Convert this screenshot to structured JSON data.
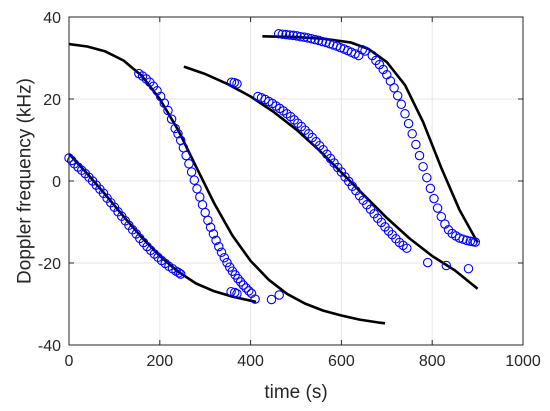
{
  "chart_data": {
    "type": "scatter",
    "title": "",
    "xlabel": "time (s)",
    "ylabel": "Doppler frequency (kHz)",
    "xlim": [
      0,
      1000
    ],
    "ylim": [
      -40,
      40
    ],
    "xticks": [
      0,
      200,
      400,
      600,
      800,
      1000
    ],
    "yticks": [
      -40,
      -20,
      0,
      20,
      40
    ],
    "grid": true,
    "box": true,
    "colors": {
      "measured": "#0000ff",
      "model": "#000000",
      "grid": "#e6e6e6",
      "axis": "#262626"
    },
    "series": [
      {
        "kind": "measured-points",
        "marker": "circle-open",
        "points": [
          [
            0,
            5.6
          ],
          [
            6,
            5.0
          ],
          [
            12,
            4.2
          ],
          [
            20,
            3.4
          ],
          [
            28,
            2.6
          ],
          [
            36,
            1.8
          ],
          [
            44,
            0.9
          ],
          [
            52,
            0.0
          ],
          [
            60,
            -1.0
          ],
          [
            68,
            -2.0
          ],
          [
            76,
            -3.0
          ],
          [
            84,
            -4.2
          ],
          [
            92,
            -5.3
          ],
          [
            100,
            -6.4
          ],
          [
            108,
            -7.5
          ],
          [
            116,
            -8.6
          ],
          [
            124,
            -9.7
          ],
          [
            132,
            -10.8
          ],
          [
            140,
            -11.9
          ],
          [
            148,
            -12.9
          ],
          [
            156,
            -14.0
          ],
          [
            164,
            -15.0
          ],
          [
            172,
            -16.0
          ],
          [
            180,
            -16.9
          ],
          [
            188,
            -17.8
          ],
          [
            196,
            -18.6
          ],
          [
            204,
            -19.4
          ],
          [
            212,
            -20.1
          ],
          [
            220,
            -20.8
          ],
          [
            228,
            -21.4
          ],
          [
            236,
            -22.0
          ],
          [
            242,
            -22.4
          ],
          [
            246,
            -22.7
          ],
          [
            154,
            26.2
          ],
          [
            162,
            25.6
          ],
          [
            170,
            24.9
          ],
          [
            178,
            24.1
          ],
          [
            186,
            23.1
          ],
          [
            194,
            22.0
          ],
          [
            202,
            20.6
          ],
          [
            210,
            19.0
          ],
          [
            218,
            17.2
          ],
          [
            226,
            15.1
          ],
          [
            234,
            12.8
          ],
          [
            240,
            11.5
          ],
          [
            246,
            9.9
          ],
          [
            252,
            8.1
          ],
          [
            258,
            6.2
          ],
          [
            264,
            4.2
          ],
          [
            270,
            2.2
          ],
          [
            276,
            0.2
          ],
          [
            282,
            -1.9
          ],
          [
            288,
            -3.9
          ],
          [
            294,
            -5.8
          ],
          [
            300,
            -7.7
          ],
          [
            306,
            -9.6
          ],
          [
            312,
            -11.3
          ],
          [
            318,
            -12.9
          ],
          [
            324,
            -14.5
          ],
          [
            330,
            -16.0
          ],
          [
            336,
            -17.4
          ],
          [
            342,
            -18.7
          ],
          [
            348,
            -19.9
          ],
          [
            354,
            -21.0
          ],
          [
            360,
            -22.0
          ],
          [
            366,
            -22.9
          ],
          [
            372,
            -23.8
          ],
          [
            378,
            -24.6
          ],
          [
            384,
            -25.4
          ],
          [
            390,
            -26.1
          ],
          [
            396,
            -26.8
          ],
          [
            402,
            -27.4
          ],
          [
            357,
            -27.0
          ],
          [
            365,
            -27.2
          ],
          [
            370,
            -27.5
          ],
          [
            358,
            24.1
          ],
          [
            364,
            24.0
          ],
          [
            370,
            23.7
          ],
          [
            410,
            -28.8
          ],
          [
            446,
            -28.9
          ],
          [
            463,
            -27.8
          ],
          [
            416,
            20.6
          ],
          [
            424,
            20.3
          ],
          [
            432,
            19.9
          ],
          [
            440,
            19.4
          ],
          [
            448,
            18.9
          ],
          [
            456,
            18.3
          ],
          [
            464,
            17.7
          ],
          [
            472,
            17.1
          ],
          [
            480,
            16.4
          ],
          [
            488,
            15.7
          ],
          [
            496,
            14.9
          ],
          [
            504,
            14.1
          ],
          [
            512,
            13.3
          ],
          [
            520,
            12.4
          ],
          [
            528,
            11.5
          ],
          [
            536,
            10.6
          ],
          [
            544,
            9.6
          ],
          [
            552,
            8.6
          ],
          [
            560,
            7.6
          ],
          [
            568,
            6.5
          ],
          [
            576,
            5.5
          ],
          [
            584,
            4.4
          ],
          [
            592,
            3.3
          ],
          [
            600,
            2.2
          ],
          [
            608,
            1.0
          ],
          [
            616,
            -0.1
          ],
          [
            624,
            -1.3
          ],
          [
            632,
            -2.4
          ],
          [
            640,
            -3.6
          ],
          [
            648,
            -4.7
          ],
          [
            656,
            -5.8
          ],
          [
            664,
            -6.9
          ],
          [
            672,
            -8.0
          ],
          [
            680,
            -9.1
          ],
          [
            688,
            -10.1
          ],
          [
            696,
            -11.2
          ],
          [
            704,
            -12.2
          ],
          [
            712,
            -13.1
          ],
          [
            720,
            -14.1
          ],
          [
            728,
            -15.0
          ],
          [
            736,
            -15.7
          ],
          [
            744,
            -16.4
          ],
          [
            790,
            -19.9
          ],
          [
            831,
            -20.6
          ],
          [
            880,
            -21.4
          ],
          [
            462,
            35.9
          ],
          [
            470,
            35.8
          ],
          [
            478,
            35.7
          ],
          [
            486,
            35.6
          ],
          [
            494,
            35.5
          ],
          [
            502,
            35.4
          ],
          [
            510,
            35.2
          ],
          [
            518,
            35.1
          ],
          [
            526,
            34.9
          ],
          [
            534,
            34.7
          ],
          [
            542,
            34.5
          ],
          [
            550,
            34.3
          ],
          [
            558,
            34.0
          ],
          [
            566,
            33.8
          ],
          [
            574,
            33.5
          ],
          [
            582,
            33.2
          ],
          [
            590,
            32.9
          ],
          [
            598,
            32.5
          ],
          [
            606,
            32.2
          ],
          [
            614,
            31.8
          ],
          [
            622,
            31.4
          ],
          [
            630,
            31.0
          ],
          [
            638,
            30.6
          ],
          [
            646,
            32.0
          ],
          [
            652,
            31.7
          ],
          [
            668,
            30.6
          ],
          [
            676,
            29.4
          ],
          [
            684,
            28.4
          ],
          [
            692,
            27.2
          ],
          [
            700,
            25.9
          ],
          [
            708,
            24.4
          ],
          [
            716,
            22.7
          ],
          [
            724,
            20.8
          ],
          [
            732,
            18.7
          ],
          [
            740,
            16.4
          ],
          [
            748,
            14.0
          ],
          [
            756,
            11.5
          ],
          [
            764,
            8.9
          ],
          [
            772,
            6.2
          ],
          [
            780,
            3.5
          ],
          [
            788,
            0.8
          ],
          [
            796,
            -1.8
          ],
          [
            804,
            -4.3
          ],
          [
            812,
            -6.6
          ],
          [
            820,
            -8.7
          ],
          [
            828,
            -10.5
          ],
          [
            836,
            -11.9
          ],
          [
            844,
            -12.8
          ],
          [
            852,
            -13.4
          ],
          [
            860,
            -13.9
          ],
          [
            868,
            -14.2
          ],
          [
            876,
            -14.5
          ],
          [
            884,
            -14.7
          ],
          [
            890,
            -14.8
          ],
          [
            895,
            -14.9
          ]
        ]
      },
      {
        "kind": "model-curve",
        "points": [
          [
            0,
            33.4
          ],
          [
            40,
            32.8
          ],
          [
            80,
            31.6
          ],
          [
            120,
            29.4
          ],
          [
            160,
            25.7
          ],
          [
            200,
            20.0
          ],
          [
            240,
            12.5
          ],
          [
            280,
            3.5
          ],
          [
            320,
            -5.5
          ],
          [
            360,
            -13.3
          ],
          [
            400,
            -19.5
          ],
          [
            440,
            -24.1
          ],
          [
            480,
            -27.5
          ],
          [
            520,
            -29.9
          ],
          [
            560,
            -31.6
          ],
          [
            600,
            -32.8
          ],
          [
            640,
            -33.8
          ],
          [
            680,
            -34.5
          ],
          [
            696,
            -34.7
          ]
        ]
      },
      {
        "kind": "model-curve",
        "points": [
          [
            0,
            6.6
          ],
          [
            40,
            1.8
          ],
          [
            80,
            -3.3
          ],
          [
            120,
            -8.6
          ],
          [
            160,
            -13.7
          ],
          [
            200,
            -18.3
          ],
          [
            240,
            -22.1
          ],
          [
            280,
            -25.0
          ],
          [
            320,
            -26.9
          ],
          [
            360,
            -28.2
          ],
          [
            400,
            -29.2
          ],
          [
            412,
            -29.5
          ]
        ]
      },
      {
        "kind": "model-curve",
        "points": [
          [
            253,
            27.9
          ],
          [
            300,
            26.1
          ],
          [
            350,
            23.6
          ],
          [
            400,
            20.6
          ],
          [
            450,
            16.9
          ],
          [
            500,
            12.6
          ],
          [
            550,
            7.6
          ],
          [
            600,
            2.1
          ],
          [
            650,
            -3.5
          ],
          [
            700,
            -9.0
          ],
          [
            750,
            -14.0
          ],
          [
            800,
            -18.3
          ],
          [
            850,
            -21.8
          ],
          [
            900,
            -26.3
          ]
        ]
      },
      {
        "kind": "model-curve",
        "points": [
          [
            426,
            35.3
          ],
          [
            500,
            35.1
          ],
          [
            560,
            34.7
          ],
          [
            620,
            33.8
          ],
          [
            660,
            32.2
          ],
          [
            700,
            29.0
          ],
          [
            740,
            23.4
          ],
          [
            780,
            14.4
          ],
          [
            820,
            3.2
          ],
          [
            860,
            -7.0
          ],
          [
            900,
            -15.0
          ]
        ]
      }
    ]
  }
}
